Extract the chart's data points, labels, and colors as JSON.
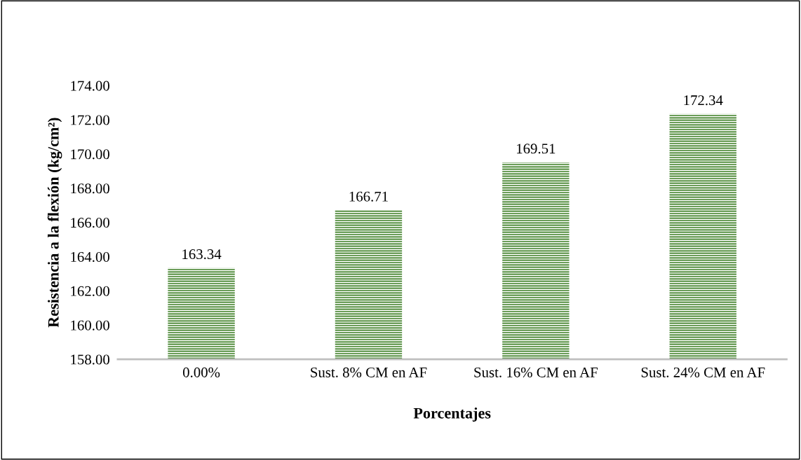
{
  "chart_data": {
    "type": "bar",
    "xlabel": "Porcentajes",
    "ylabel": "Resistencia a la flexión (kg/cm²)",
    "categories": [
      "0.00%",
      "Sust. 8% CM en AF",
      "Sust. 16% CM en AF",
      "Sust. 24% CM en AF"
    ],
    "values": [
      163.34,
      166.71,
      169.51,
      172.34
    ],
    "color": "#3a7d22",
    "ylim": [
      158,
      174
    ],
    "yticks": [
      {
        "value": 158,
        "label": "158.00"
      },
      {
        "value": 160,
        "label": "160.00"
      },
      {
        "value": 162,
        "label": "162.00"
      },
      {
        "value": 164,
        "label": "164.00"
      },
      {
        "value": 166,
        "label": "166.00"
      },
      {
        "value": 168,
        "label": "168.00"
      },
      {
        "value": 170,
        "label": "170.00"
      },
      {
        "value": 172,
        "label": "172.00"
      },
      {
        "value": 174,
        "label": "174.00"
      }
    ],
    "data_labels": true,
    "grid": false,
    "legend": false
  }
}
